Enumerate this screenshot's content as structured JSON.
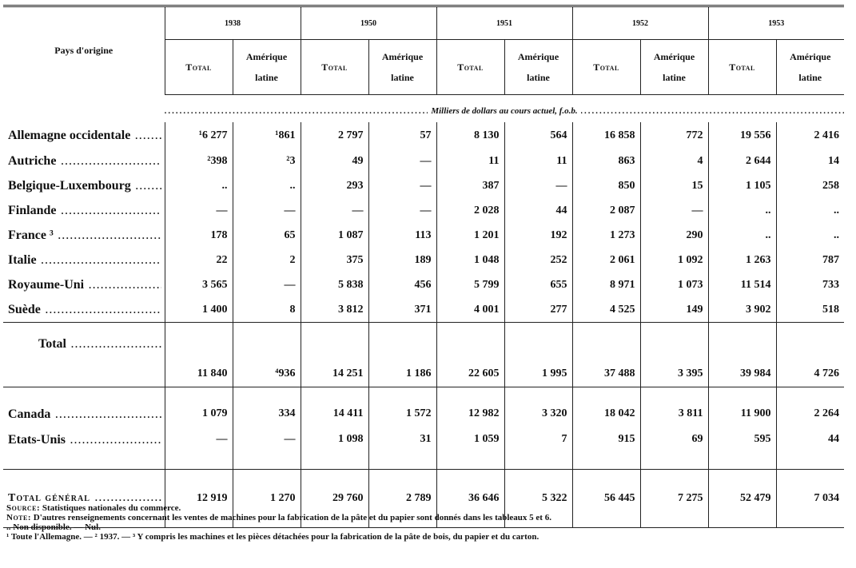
{
  "table": {
    "header": {
      "country_col": "Pays d'origine",
      "years": [
        "1938",
        "1950",
        "1951",
        "1952",
        "1953"
      ],
      "subcols": [
        "Total",
        "Amérique latine"
      ]
    },
    "unit_note": "Milliers de dollars au cours actuel, f.o.b.",
    "sections": [
      {
        "rows": [
          {
            "label": "Allemagne occidentale",
            "cells": [
              "¹6 277",
              "¹861",
              "2 797",
              "57",
              "8 130",
              "564",
              "16 858",
              "772",
              "19 556",
              "2 416"
            ]
          },
          {
            "label": "Autriche",
            "cells": [
              "²398",
              "²3",
              "49",
              "—",
              "11",
              "11",
              "863",
              "4",
              "2 644",
              "14"
            ]
          },
          {
            "label": "Belgique-Luxembourg",
            "cells": [
              "..",
              "..",
              "293",
              "—",
              "387",
              "—",
              "850",
              "15",
              "1 105",
              "258"
            ]
          },
          {
            "label": "Finlande",
            "cells": [
              "—",
              "—",
              "—",
              "—",
              "2 028",
              "44",
              "2 087",
              "—",
              "..",
              ".."
            ]
          },
          {
            "label": "France ³",
            "cells": [
              "178",
              "65",
              "1 087",
              "113",
              "1 201",
              "192",
              "1 273",
              "290",
              "..",
              ".."
            ]
          },
          {
            "label": "Italie",
            "cells": [
              "22",
              "2",
              "375",
              "189",
              "1 048",
              "252",
              "2 061",
              "1 092",
              "1 263",
              "787"
            ]
          },
          {
            "label": "Royaume-Uni",
            "cells": [
              "3 565",
              "—",
              "5 838",
              "456",
              "5 799",
              "655",
              "8 971",
              "1 073",
              "11 514",
              "733"
            ]
          },
          {
            "label": "Suède",
            "cells": [
              "1 400",
              "8",
              "3 812",
              "371",
              "4 001",
              "277",
              "4 525",
              "149",
              "3 902",
              "518"
            ]
          }
        ]
      },
      {
        "rows": [
          {
            "label": "Total",
            "cells": [
              "11 840",
              "⁴936",
              "14 251",
              "1 186",
              "22 605",
              "1 995",
              "37 488",
              "3 395",
              "39 984",
              "4 726"
            ]
          }
        ]
      },
      {
        "rows": [
          {
            "label": "Canada",
            "cells": [
              "1 079",
              "334",
              "14 411",
              "1 572",
              "12 982",
              "3 320",
              "18 042",
              "3 811",
              "11 900",
              "2 264"
            ]
          },
          {
            "label": "Etats-Unis",
            "cells": [
              "—",
              "—",
              "1 098",
              "31",
              "1 059",
              "7",
              "915",
              "69",
              "595",
              "44"
            ]
          }
        ]
      },
      {
        "rows": [
          {
            "label": "Total général",
            "cells": [
              "12 919",
              "1 270",
              "29 760",
              "2 789",
              "36 646",
              "5 322",
              "56 445",
              "7 275",
              "52 479",
              "7 034"
            ]
          }
        ]
      }
    ]
  },
  "notes": {
    "source": {
      "label": "Source:",
      "text": "Statistiques nationales du commerce."
    },
    "note": {
      "label": "Note:",
      "text": "D'autres renseignements concernant les ventes de machines pour la fabrication de la pâte et du papier sont donnés dans les tableaux 5 et 6."
    },
    "symbols": ".. Non disponible. — Nul.",
    "footnotes": "¹ Toute l'Allemagne. — ² 1937. — ³ Y compris les machines et les pièces détachées pour la fabrication de la pâte de bois, du papier et du carton."
  }
}
